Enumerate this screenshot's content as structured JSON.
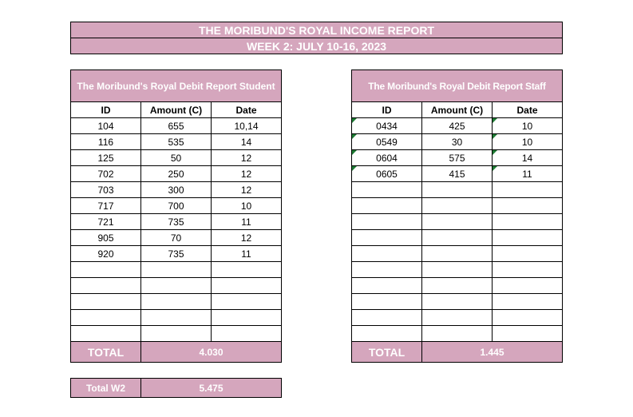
{
  "header": {
    "title": "THE MORIBUND'S ROYAL INCOME REPORT",
    "subtitle": "WEEK 2: JULY 10-16, 2023"
  },
  "student": {
    "title": "The Moribund's Royal Debit Report Student",
    "columns": [
      "ID",
      "Amount (C)",
      "Date"
    ],
    "rows": [
      [
        "104",
        "655",
        "10,14"
      ],
      [
        "116",
        "535",
        "14"
      ],
      [
        "125",
        "50",
        "12"
      ],
      [
        "702",
        "250",
        "12"
      ],
      [
        "703",
        "300",
        "12"
      ],
      [
        "717",
        "700",
        "10"
      ],
      [
        "721",
        "735",
        "11"
      ],
      [
        "905",
        "70",
        "12"
      ],
      [
        "920",
        "735",
        "11"
      ]
    ],
    "total_label": "TOTAL",
    "total": "4.030"
  },
  "staff": {
    "title": "The Moribund's Royal Debit Report Staff",
    "columns": [
      "ID",
      "Amount (C)",
      "Date"
    ],
    "rows": [
      [
        "0434",
        "425",
        "10"
      ],
      [
        "0549",
        "30",
        "10"
      ],
      [
        "0604",
        "575",
        "14"
      ],
      [
        "0605",
        "415",
        "11"
      ]
    ],
    "total_label": "TOTAL",
    "total": "1.445"
  },
  "grand_total": {
    "label": "Total W2",
    "value": "5.475"
  }
}
